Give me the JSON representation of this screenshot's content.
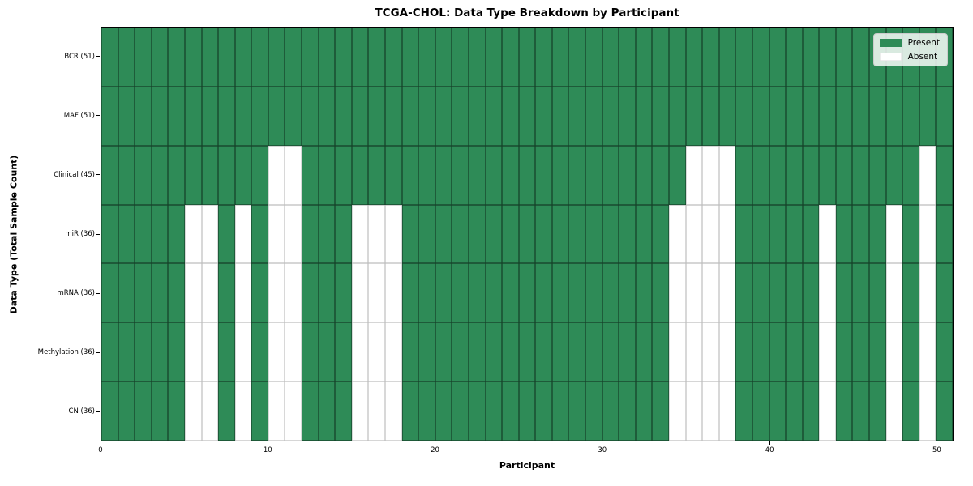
{
  "chart_data": {
    "type": "heatmap",
    "title": "TCGA-CHOL: Data Type Breakdown by Participant",
    "xlabel": "Participant",
    "ylabel": "Data Type (Total Sample Count)",
    "n_participants": 51,
    "x_axis_range": [
      0,
      51
    ],
    "x_ticks": [
      0,
      10,
      20,
      30,
      40,
      50
    ],
    "grid": "cell-borders",
    "legend_position": "upper-right",
    "colors": {
      "present": "#2e8b57",
      "absent": "#ffffff",
      "present_edge": "rgba(0,0,0,0.55)",
      "absent_edge": "#bdbdbd",
      "frame": "#000000"
    },
    "legend": [
      {
        "label": "Present",
        "color": "#2e8b57"
      },
      {
        "label": "Absent",
        "color": "#ffffff"
      }
    ],
    "rows": [
      {
        "label": "BCR (51)",
        "data_type": "BCR",
        "present_count": 51,
        "absent_participants": []
      },
      {
        "label": "MAF (51)",
        "data_type": "MAF",
        "present_count": 51,
        "absent_participants": []
      },
      {
        "label": "Clinical (45)",
        "data_type": "Clinical",
        "present_count": 45,
        "absent_participants": [
          10,
          11,
          35,
          36,
          37,
          49
        ]
      },
      {
        "label": "miR (36)",
        "data_type": "miR",
        "present_count": 36,
        "absent_participants": [
          5,
          6,
          8,
          10,
          11,
          15,
          16,
          17,
          34,
          35,
          36,
          37,
          43,
          47,
          49
        ]
      },
      {
        "label": "mRNA (36)",
        "data_type": "mRNA",
        "present_count": 36,
        "absent_participants": [
          5,
          6,
          8,
          10,
          11,
          15,
          16,
          17,
          34,
          35,
          36,
          37,
          43,
          47,
          49
        ]
      },
      {
        "label": "Methylation (36)",
        "data_type": "Methylation",
        "present_count": 36,
        "absent_participants": [
          5,
          6,
          8,
          10,
          11,
          15,
          16,
          17,
          34,
          35,
          36,
          37,
          43,
          47,
          49
        ]
      },
      {
        "label": "CN (36)",
        "data_type": "CN",
        "present_count": 36,
        "absent_participants": [
          5,
          6,
          8,
          10,
          11,
          15,
          16,
          17,
          34,
          35,
          36,
          37,
          43,
          47,
          49
        ]
      }
    ]
  }
}
